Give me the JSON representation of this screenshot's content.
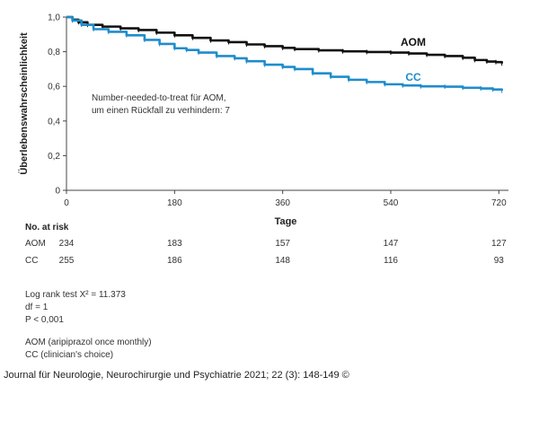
{
  "chart_data": {
    "type": "line",
    "ylabel": "Überlebenswahrscheinlichkeit",
    "xlabel": "Tage",
    "xlim": [
      0,
      730
    ],
    "ylim": [
      0,
      1
    ],
    "x_ticks": [
      0,
      180,
      360,
      540,
      720
    ],
    "y_ticks": [
      {
        "value": 0,
        "label": "0"
      },
      {
        "value": 0.2,
        "label": "0,2"
      },
      {
        "value": 0.4,
        "label": "0,4"
      },
      {
        "value": 0.6,
        "label": "0,6"
      },
      {
        "value": 0.8,
        "label": "0,8"
      },
      {
        "value": 1.0,
        "label": "1,0"
      }
    ],
    "annotation_line1": "Number-needed-to-treat für AOM,",
    "annotation_line2": "um einen Rückfall zu verhindern: 7",
    "series": [
      {
        "name": "AOM",
        "color": "#111111",
        "points": [
          [
            0,
            1.0
          ],
          [
            10,
            0.985
          ],
          [
            20,
            0.97
          ],
          [
            35,
            0.955
          ],
          [
            60,
            0.945
          ],
          [
            90,
            0.935
          ],
          [
            120,
            0.925
          ],
          [
            150,
            0.91
          ],
          [
            180,
            0.895
          ],
          [
            210,
            0.88
          ],
          [
            240,
            0.865
          ],
          [
            270,
            0.855
          ],
          [
            300,
            0.842
          ],
          [
            330,
            0.832
          ],
          [
            360,
            0.822
          ],
          [
            380,
            0.815
          ],
          [
            420,
            0.808
          ],
          [
            460,
            0.802
          ],
          [
            500,
            0.798
          ],
          [
            540,
            0.795
          ],
          [
            570,
            0.79
          ],
          [
            600,
            0.782
          ],
          [
            630,
            0.775
          ],
          [
            660,
            0.765
          ],
          [
            680,
            0.752
          ],
          [
            700,
            0.743
          ],
          [
            715,
            0.74
          ],
          [
            725,
            0.732
          ]
        ]
      },
      {
        "name": "CC",
        "color": "#1f8ccc",
        "points": [
          [
            0,
            1.0
          ],
          [
            10,
            0.98
          ],
          [
            25,
            0.955
          ],
          [
            45,
            0.93
          ],
          [
            70,
            0.915
          ],
          [
            100,
            0.895
          ],
          [
            130,
            0.868
          ],
          [
            155,
            0.845
          ],
          [
            180,
            0.82
          ],
          [
            200,
            0.81
          ],
          [
            220,
            0.795
          ],
          [
            250,
            0.775
          ],
          [
            280,
            0.762
          ],
          [
            300,
            0.745
          ],
          [
            330,
            0.725
          ],
          [
            360,
            0.712
          ],
          [
            380,
            0.7
          ],
          [
            410,
            0.675
          ],
          [
            440,
            0.655
          ],
          [
            470,
            0.638
          ],
          [
            500,
            0.625
          ],
          [
            530,
            0.612
          ],
          [
            560,
            0.605
          ],
          [
            590,
            0.6
          ],
          [
            630,
            0.598
          ],
          [
            660,
            0.592
          ],
          [
            690,
            0.588
          ],
          [
            710,
            0.582
          ],
          [
            725,
            0.575
          ]
        ]
      }
    ],
    "risk_table": {
      "title": "No. at risk",
      "time_points": [
        0,
        180,
        360,
        540,
        720
      ],
      "rows": [
        {
          "label": "AOM",
          "counts": [
            234,
            183,
            157,
            147,
            127
          ]
        },
        {
          "label": "CC",
          "counts": [
            255,
            186,
            148,
            116,
            93
          ]
        }
      ]
    }
  },
  "stats": {
    "line1": "Log rank test X² = 11.373",
    "line2": "df = 1",
    "line3": "P < 0,001"
  },
  "legend_notes": {
    "aom": "AOM (aripiprazol once monthly)",
    "cc": "CC (clinician's choice)"
  },
  "footer": "Journal für Neurologie, Neurochirurgie und Psychiatrie 2021; 22 (3): 148-149 ©"
}
